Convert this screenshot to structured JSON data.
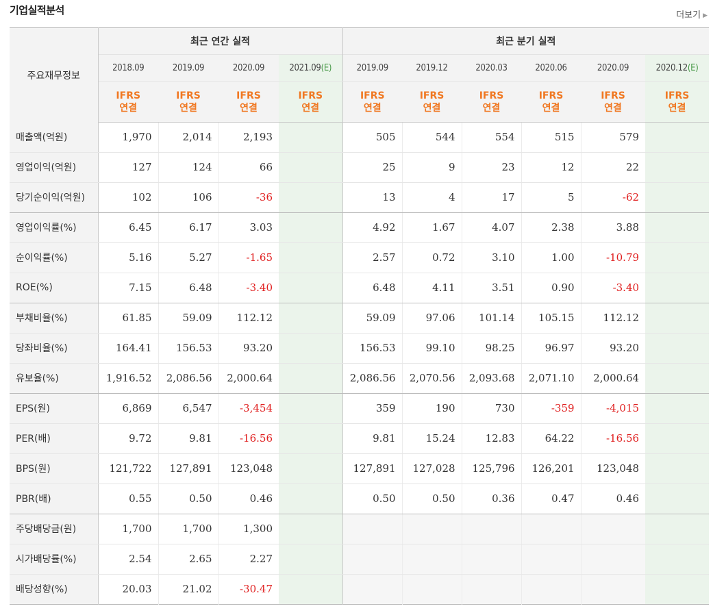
{
  "section_title": "기업실적분석",
  "more_link": "더보기",
  "table": {
    "corner_header": "주요재무정보",
    "annual_header": "최근 연간 실적",
    "quarterly_header": "최근 분기 실적",
    "ifrs_line1": "IFRS",
    "ifrs_line2": "연결",
    "estimate_mark": "(E)",
    "annual_periods": [
      "2018.09",
      "2019.09",
      "2020.09",
      "2021.09"
    ],
    "quarterly_periods": [
      "2019.09",
      "2019.12",
      "2020.03",
      "2020.06",
      "2020.09",
      "2020.12"
    ],
    "rows": [
      {
        "label": "매출액(억원)",
        "values": [
          "1,970",
          "2,014",
          "2,193",
          "",
          "505",
          "544",
          "554",
          "515",
          "579",
          ""
        ]
      },
      {
        "label": "영업이익(억원)",
        "values": [
          "127",
          "124",
          "66",
          "",
          "25",
          "9",
          "23",
          "12",
          "22",
          ""
        ]
      },
      {
        "label": "당기순이익(억원)",
        "values": [
          "102",
          "106",
          "-36",
          "",
          "13",
          "4",
          "17",
          "5",
          "-62",
          ""
        ]
      },
      {
        "label": "영업이익률(%)",
        "values": [
          "6.45",
          "6.17",
          "3.03",
          "",
          "4.92",
          "1.67",
          "4.07",
          "2.38",
          "3.88",
          ""
        ]
      },
      {
        "label": "순이익률(%)",
        "values": [
          "5.16",
          "5.27",
          "-1.65",
          "",
          "2.57",
          "0.72",
          "3.10",
          "1.00",
          "-10.79",
          ""
        ]
      },
      {
        "label": "ROE(%)",
        "values": [
          "7.15",
          "6.48",
          "-3.40",
          "",
          "6.48",
          "4.11",
          "3.51",
          "0.90",
          "-3.40",
          ""
        ]
      },
      {
        "label": "부채비율(%)",
        "values": [
          "61.85",
          "59.09",
          "112.12",
          "",
          "59.09",
          "97.06",
          "101.14",
          "105.15",
          "112.12",
          ""
        ]
      },
      {
        "label": "당좌비율(%)",
        "values": [
          "164.41",
          "156.53",
          "93.20",
          "",
          "156.53",
          "99.10",
          "98.25",
          "96.97",
          "93.20",
          ""
        ]
      },
      {
        "label": "유보율(%)",
        "values": [
          "1,916.52",
          "2,086.56",
          "2,000.64",
          "",
          "2,086.56",
          "2,070.56",
          "2,093.68",
          "2,071.10",
          "2,000.64",
          ""
        ]
      },
      {
        "label": "EPS(원)",
        "values": [
          "6,869",
          "6,547",
          "-3,454",
          "",
          "359",
          "190",
          "730",
          "-359",
          "-4,015",
          ""
        ]
      },
      {
        "label": "PER(배)",
        "values": [
          "9.72",
          "9.81",
          "-16.56",
          "",
          "9.81",
          "15.24",
          "12.83",
          "64.22",
          "-16.56",
          ""
        ]
      },
      {
        "label": "BPS(원)",
        "values": [
          "121,722",
          "127,891",
          "123,048",
          "",
          "127,891",
          "127,028",
          "125,796",
          "126,201",
          "123,048",
          ""
        ]
      },
      {
        "label": "PBR(배)",
        "values": [
          "0.55",
          "0.50",
          "0.46",
          "",
          "0.50",
          "0.50",
          "0.36",
          "0.47",
          "0.46",
          ""
        ]
      },
      {
        "label": "주당배당금(원)",
        "values": [
          "1,700",
          "1,700",
          "1,300",
          "",
          "",
          "",
          "",
          "",
          "",
          ""
        ]
      },
      {
        "label": "시가배당률(%)",
        "values": [
          "2.54",
          "2.65",
          "2.27",
          "",
          "",
          "",
          "",
          "",
          "",
          ""
        ]
      },
      {
        "label": "배당성향(%)",
        "values": [
          "20.03",
          "21.02",
          "-30.47",
          "",
          "",
          "",
          "",
          "",
          "",
          ""
        ]
      }
    ]
  },
  "colors": {
    "negative": "#e02020",
    "ifrs_text": "#f07822",
    "estimate_bg": "#ebf4eb",
    "estimate_mark": "#4a9a4a",
    "header_bg": "#f3f3f3"
  }
}
